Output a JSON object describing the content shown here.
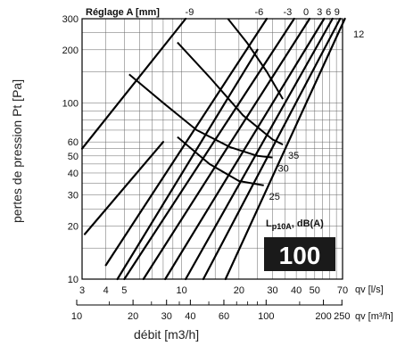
{
  "chart_data": {
    "type": "line",
    "ylabel": "pertes de pression  Pt [Pa]",
    "xlabel": "débit [m3/h]",
    "setting_axis_label": "Réglage A [mm]",
    "axis1_unit": "qv [l/s]",
    "axis2_unit": "qv [m³/h]",
    "y_scale": "log",
    "y_range": [
      10,
      300
    ],
    "y_ticks": [
      "10",
      "20",
      "30",
      "40",
      "50",
      "60",
      "100",
      "200",
      "300"
    ],
    "x_scale": "log",
    "x_range_ls": [
      3,
      70
    ],
    "x_ticks_ls": [
      "3",
      "4",
      "5",
      "10",
      "20",
      "30",
      "40",
      "50",
      "70"
    ],
    "x_ticks_m3h": [
      "10",
      "20",
      "30",
      "40",
      "60",
      "100",
      "200",
      "250"
    ],
    "grid": true,
    "setting_labels": [
      "-9",
      "-6",
      "-3",
      "0",
      "3",
      "6",
      "9",
      "12"
    ],
    "setting_lines": [
      {
        "setting": "-9",
        "points": [
          [
            3,
            55
          ],
          [
            10.5,
            300
          ]
        ]
      },
      {
        "setting": "-6",
        "points": [
          [
            4,
            12
          ],
          [
            28,
            300
          ]
        ]
      },
      {
        "setting": "-3",
        "points": [
          [
            5,
            10
          ],
          [
            39,
            300
          ]
        ]
      },
      {
        "setting": "0",
        "points": [
          [
            6.3,
            10
          ],
          [
            47,
            300
          ]
        ]
      },
      {
        "setting": "3",
        "points": [
          [
            8.2,
            10
          ],
          [
            56,
            300
          ]
        ]
      },
      {
        "setting": "6",
        "points": [
          [
            10.5,
            10
          ],
          [
            62,
            300
          ]
        ]
      },
      {
        "setting": "9",
        "points": [
          [
            13,
            10
          ],
          [
            68,
            300
          ]
        ]
      },
      {
        "setting": "12",
        "points": [
          [
            17,
            10
          ],
          [
            72,
            300
          ]
        ]
      },
      {
        "setting": "",
        "points": [
          [
            3.1,
            18
          ],
          [
            8,
            60
          ]
        ]
      },
      {
        "setting": "",
        "points": [
          [
            4.6,
            10
          ],
          [
            25,
            200
          ]
        ]
      }
    ],
    "noise_curves": [
      {
        "label": "35",
        "points": [
          [
            9.5,
            220
          ],
          [
            14,
            140
          ],
          [
            21,
            85
          ],
          [
            30,
            62
          ],
          [
            34,
            58
          ]
        ]
      },
      {
        "label": "30",
        "points": [
          [
            5.3,
            145
          ],
          [
            8,
            100
          ],
          [
            12,
            70
          ],
          [
            18,
            56
          ],
          [
            25,
            50
          ],
          [
            30,
            49
          ]
        ]
      },
      {
        "label": "25",
        "points": [
          [
            9.5,
            64
          ],
          [
            14,
            45
          ],
          [
            20,
            36
          ],
          [
            27,
            34
          ]
        ]
      },
      {
        "label": "",
        "points": [
          [
            17.5,
            300
          ],
          [
            22,
            220
          ],
          [
            28,
            150
          ],
          [
            34,
            105
          ]
        ]
      }
    ],
    "noise_title": "Lp10A, dB(A)",
    "noise_title_main": "L",
    "noise_title_sub": "p10A",
    "noise_title_rest": ", dB(A)",
    "size_badge": "100",
    "colors": {
      "lines": "#000000",
      "grid": "#555555",
      "badge_bg": "#1a1a1a",
      "badge_text": "#ffffff"
    }
  }
}
